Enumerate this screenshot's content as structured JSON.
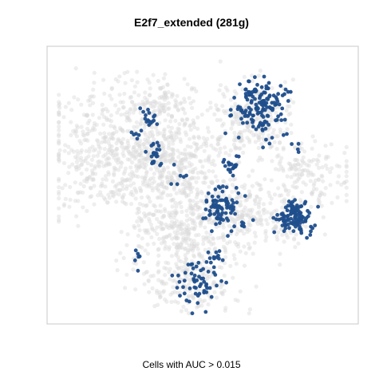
{
  "chart_data": {
    "type": "scatter",
    "title": "E2f7_extended (281g)",
    "xlabel": "Cells with AUC > 0.015",
    "ylabel": "",
    "axes": "none",
    "grid": false,
    "legend": "none",
    "colors": {
      "background_cells": "#d9d9d9",
      "highlighted_cells": "#1f4e8c",
      "frame": "#c8c8c8"
    },
    "series": [
      {
        "name": "",
        "color": "#d9d9d9",
        "clusters": [
          {
            "center": [
              0.22,
              0.62
            ],
            "spread": [
              0.14,
              0.12
            ],
            "count": 650
          },
          {
            "center": [
              0.45,
              0.32
            ],
            "spread": [
              0.1,
              0.09
            ],
            "count": 380
          },
          {
            "center": [
              0.44,
              0.58
            ],
            "spread": [
              0.08,
              0.1
            ],
            "count": 260
          },
          {
            "center": [
              0.67,
              0.75
            ],
            "spread": [
              0.07,
              0.07
            ],
            "count": 240
          },
          {
            "center": [
              0.85,
              0.55
            ],
            "spread": [
              0.08,
              0.06
            ],
            "count": 160
          },
          {
            "center": [
              0.63,
              0.42
            ],
            "spread": [
              0.06,
              0.06
            ],
            "count": 140
          },
          {
            "center": [
              0.45,
              0.12
            ],
            "spread": [
              0.08,
              0.06
            ],
            "count": 160
          },
          {
            "center": [
              0.35,
              0.82
            ],
            "spread": [
              0.07,
              0.05
            ],
            "count": 120
          },
          {
            "center": [
              0.78,
              0.35
            ],
            "spread": [
              0.06,
              0.05
            ],
            "count": 90
          }
        ]
      },
      {
        "name": "",
        "color": "#1f4e8c",
        "clusters": [
          {
            "center": [
              0.7,
              0.8
            ],
            "spread": [
              0.045,
              0.05
            ],
            "count": 150
          },
          {
            "center": [
              0.81,
              0.38
            ],
            "spread": [
              0.03,
              0.035
            ],
            "count": 110
          },
          {
            "center": [
              0.57,
              0.42
            ],
            "spread": [
              0.03,
              0.04
            ],
            "count": 80
          },
          {
            "center": [
              0.49,
              0.12
            ],
            "spread": [
              0.04,
              0.04
            ],
            "count": 55
          },
          {
            "center": [
              0.6,
              0.58
            ],
            "spread": [
              0.02,
              0.02
            ],
            "count": 20
          },
          {
            "center": [
              0.34,
              0.63
            ],
            "spread": [
              0.01,
              0.03
            ],
            "count": 22
          },
          {
            "center": [
              0.31,
              0.76
            ],
            "spread": [
              0.015,
              0.015
            ],
            "count": 16
          },
          {
            "center": [
              0.27,
              0.7
            ],
            "spread": [
              0.01,
              0.01
            ],
            "count": 6
          },
          {
            "center": [
              0.28,
              0.23
            ],
            "spread": [
              0.01,
              0.02
            ],
            "count": 6
          },
          {
            "center": [
              0.54,
              0.22
            ],
            "spread": [
              0.015,
              0.02
            ],
            "count": 12
          },
          {
            "center": [
              0.42,
              0.55
            ],
            "spread": [
              0.02,
              0.02
            ],
            "count": 6
          },
          {
            "center": [
              0.82,
              0.65
            ],
            "spread": [
              0.01,
              0.01
            ],
            "count": 4
          },
          {
            "center": [
              0.63,
              0.35
            ],
            "spread": [
              0.015,
              0.01
            ],
            "count": 6
          }
        ]
      }
    ]
  }
}
